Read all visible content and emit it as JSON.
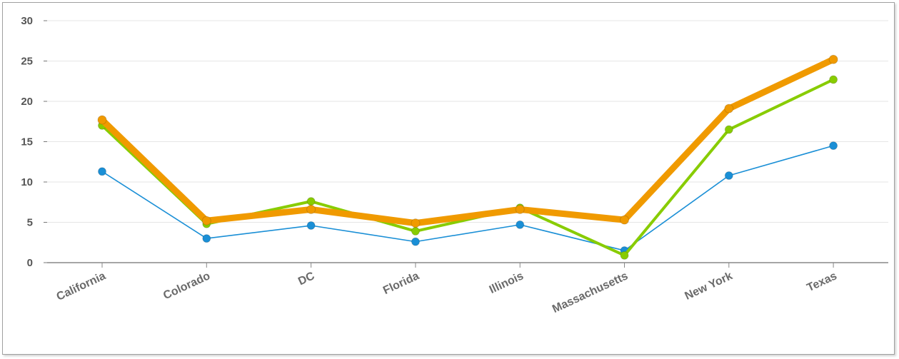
{
  "chart_data": {
    "type": "line",
    "title": "",
    "xlabel": "",
    "ylabel": "",
    "categories": [
      "California",
      "Colorado",
      "DC",
      "Florida",
      "Illinois",
      "Massachusetts",
      "New York",
      "Texas"
    ],
    "ylim": [
      0,
      30
    ],
    "yticks": [
      "0",
      "5",
      "10",
      "15",
      "20",
      "25",
      "30"
    ],
    "grid": true,
    "legend": "none",
    "series": [
      {
        "color": "#1a8fd6",
        "values": [
          11.3,
          3.0,
          4.6,
          2.6,
          4.7,
          1.5,
          10.8,
          14.5
        ]
      },
      {
        "color": "#88cc00",
        "values": [
          17.0,
          4.8,
          7.6,
          3.9,
          6.8,
          0.9,
          16.5,
          22.7
        ]
      },
      {
        "color": "#f09a00",
        "values": [
          17.7,
          5.2,
          6.6,
          4.9,
          6.6,
          5.3,
          19.1,
          25.2
        ]
      }
    ]
  }
}
